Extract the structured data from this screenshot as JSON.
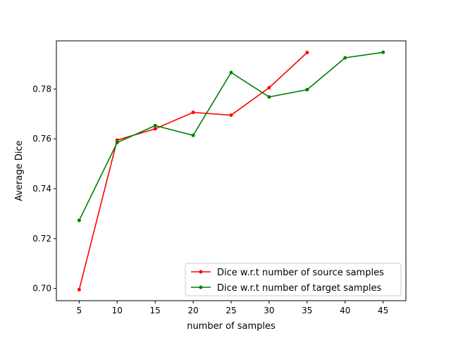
{
  "chart_data": {
    "type": "line",
    "title": "",
    "xlabel": "number of samples",
    "ylabel": "Average Dice",
    "xlim": [
      2.0,
      48.0
    ],
    "ylim": [
      0.6951,
      0.7993
    ],
    "xticks": [
      5,
      10,
      15,
      20,
      25,
      30,
      35,
      40,
      45
    ],
    "yticks": [
      0.7,
      0.72,
      0.74,
      0.76,
      0.78
    ],
    "ytick_labels": [
      "0.70",
      "0.72",
      "0.74",
      "0.76",
      "0.78"
    ],
    "grid": false,
    "legend_position": "lower-right",
    "series": [
      {
        "name": "Dice w.r.t number of source samples",
        "color": "#ff0000",
        "marker": "circle",
        "x": [
          5,
          10,
          15,
          20,
          25,
          30,
          35
        ],
        "y": [
          0.6995,
          0.7595,
          0.764,
          0.7706,
          0.7695,
          0.7805,
          0.7946
        ]
      },
      {
        "name": "Dice w.r.t number of target samples",
        "color": "#008000",
        "marker": "circle",
        "x": [
          5,
          10,
          15,
          20,
          25,
          30,
          35,
          40,
          45
        ],
        "y": [
          0.7273,
          0.7585,
          0.7653,
          0.7614,
          0.7866,
          0.7768,
          0.7797,
          0.7925,
          0.7947
        ]
      }
    ]
  }
}
